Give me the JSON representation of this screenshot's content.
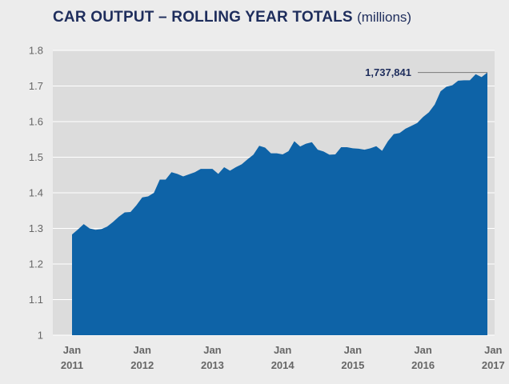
{
  "chart_data": {
    "type": "area",
    "title": "CAR OUTPUT – ROLLING YEAR TOTALS",
    "unit": "(millions)",
    "xlabel": "",
    "ylabel": "",
    "ylim": [
      1,
      1.8
    ],
    "yticks": [
      "1",
      "1.1",
      "1.2",
      "1.3",
      "1.4",
      "1.5",
      "1.6",
      "1.7",
      "1.8"
    ],
    "xticks": [
      {
        "month": "Jan",
        "year": "2011",
        "index": 0
      },
      {
        "month": "Jan",
        "year": "2012",
        "index": 12
      },
      {
        "month": "Jan",
        "year": "2013",
        "index": 24
      },
      {
        "month": "Jan",
        "year": "2014",
        "index": 36
      },
      {
        "month": "Jan",
        "year": "2015",
        "index": 48
      },
      {
        "month": "Jan",
        "year": "2016",
        "index": 60
      },
      {
        "month": "Jan",
        "year": "2017",
        "index": 72
      }
    ],
    "grid": true,
    "color": "#0e63a7",
    "series": [
      {
        "values": [
          1.283,
          1.297,
          1.312,
          1.3,
          1.296,
          1.298,
          1.305,
          1.318,
          1.333,
          1.345,
          1.346,
          1.365,
          1.387,
          1.39,
          1.4,
          1.437,
          1.437,
          1.458,
          1.453,
          1.446,
          1.452,
          1.458,
          1.467,
          1.467,
          1.467,
          1.453,
          1.472,
          1.462,
          1.472,
          1.48,
          1.494,
          1.507,
          1.532,
          1.527,
          1.511,
          1.511,
          1.508,
          1.517,
          1.545,
          1.53,
          1.538,
          1.542,
          1.521,
          1.516,
          1.507,
          1.508,
          1.528,
          1.528,
          1.525,
          1.524,
          1.521,
          1.525,
          1.531,
          1.518,
          1.545,
          1.565,
          1.568,
          1.58,
          1.588,
          1.596,
          1.613,
          1.626,
          1.648,
          1.685,
          1.698,
          1.702,
          1.715,
          1.716,
          1.716,
          1.733,
          1.725,
          1.738
        ]
      }
    ],
    "annotation": {
      "label": "1,737,841",
      "value": 1.737841
    }
  }
}
